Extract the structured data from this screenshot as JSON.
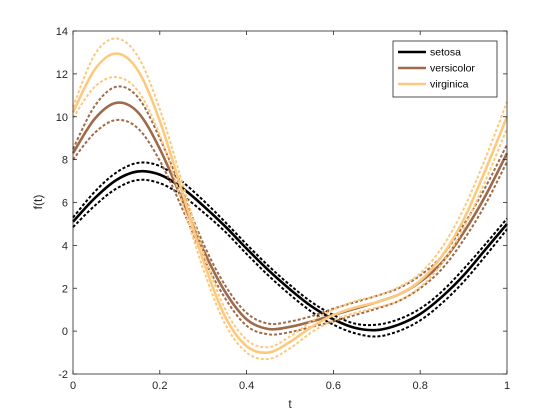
{
  "chart_data": {
    "type": "line",
    "title": "",
    "xlabel": "t",
    "ylabel": "f(t)",
    "xlim": [
      0,
      1
    ],
    "ylim": [
      -2,
      14
    ],
    "xticks": [
      "0",
      "0.2",
      "0.4",
      "0.6",
      "0.8",
      "1"
    ],
    "yticks": [
      "-2",
      "0",
      "2",
      "4",
      "6",
      "8",
      "10",
      "12",
      "14"
    ],
    "grid": false,
    "legend_position": "top-right",
    "x": [
      0,
      0.05,
      0.1,
      0.15,
      0.2,
      0.25,
      0.3,
      0.35,
      0.4,
      0.45,
      0.5,
      0.55,
      0.6,
      0.65,
      0.7,
      0.75,
      0.8,
      0.85,
      0.9,
      0.95,
      1.0
    ],
    "series": [
      {
        "name": "setosa",
        "color": "#000000",
        "values": [
          5.1,
          6.2,
          7.05,
          7.45,
          7.3,
          6.7,
          5.85,
          4.9,
          3.85,
          2.85,
          1.95,
          1.15,
          0.55,
          0.15,
          0.05,
          0.3,
          0.8,
          1.6,
          2.6,
          3.8,
          5.0
        ],
        "upper": [
          5.3,
          6.5,
          7.4,
          7.85,
          7.7,
          7.0,
          6.1,
          5.1,
          4.05,
          3.05,
          2.15,
          1.35,
          0.75,
          0.35,
          0.3,
          0.55,
          1.05,
          1.85,
          2.9,
          4.05,
          5.25
        ],
        "lower": [
          4.85,
          5.85,
          6.65,
          7.05,
          6.9,
          6.35,
          5.55,
          4.65,
          3.6,
          2.6,
          1.7,
          0.9,
          0.3,
          -0.1,
          -0.25,
          0.0,
          0.5,
          1.3,
          2.3,
          3.5,
          4.75
        ]
      },
      {
        "name": "versicolor",
        "color": "#9e6a4a",
        "values": [
          8.3,
          9.9,
          10.65,
          10.2,
          8.5,
          6.2,
          3.8,
          1.85,
          0.55,
          0.1,
          0.2,
          0.45,
          0.75,
          1.05,
          1.35,
          1.7,
          2.3,
          3.2,
          4.6,
          6.3,
          8.3
        ],
        "upper": [
          8.5,
          10.5,
          11.4,
          10.9,
          9.0,
          6.6,
          4.1,
          2.15,
          0.85,
          0.35,
          0.45,
          0.7,
          1.05,
          1.35,
          1.65,
          2.0,
          2.6,
          3.5,
          4.95,
          6.7,
          8.7
        ],
        "lower": [
          8.0,
          9.25,
          9.85,
          9.45,
          7.95,
          5.8,
          3.45,
          1.55,
          0.25,
          -0.15,
          -0.05,
          0.2,
          0.45,
          0.75,
          1.05,
          1.4,
          2.0,
          2.9,
          4.25,
          5.9,
          7.9
        ]
      },
      {
        "name": "virginica",
        "color": "#fdc97e",
        "values": [
          10.2,
          12.2,
          12.95,
          12.15,
          9.8,
          6.6,
          3.3,
          0.7,
          -0.7,
          -1.0,
          -0.5,
          0.2,
          0.75,
          1.1,
          1.35,
          1.7,
          2.35,
          3.5,
          5.2,
          7.5,
          10.0
        ],
        "upper": [
          10.45,
          12.9,
          13.65,
          12.8,
          10.35,
          7.05,
          3.7,
          1.05,
          -0.4,
          -0.75,
          -0.25,
          0.45,
          1.0,
          1.4,
          1.65,
          2.05,
          2.7,
          3.9,
          5.7,
          8.05,
          10.7
        ],
        "lower": [
          9.95,
          11.4,
          11.85,
          11.2,
          9.15,
          6.1,
          2.9,
          0.35,
          -1.0,
          -1.3,
          -0.8,
          -0.05,
          0.5,
          0.85,
          1.1,
          1.4,
          2.05,
          3.15,
          4.8,
          7.0,
          9.45
        ]
      }
    ]
  }
}
